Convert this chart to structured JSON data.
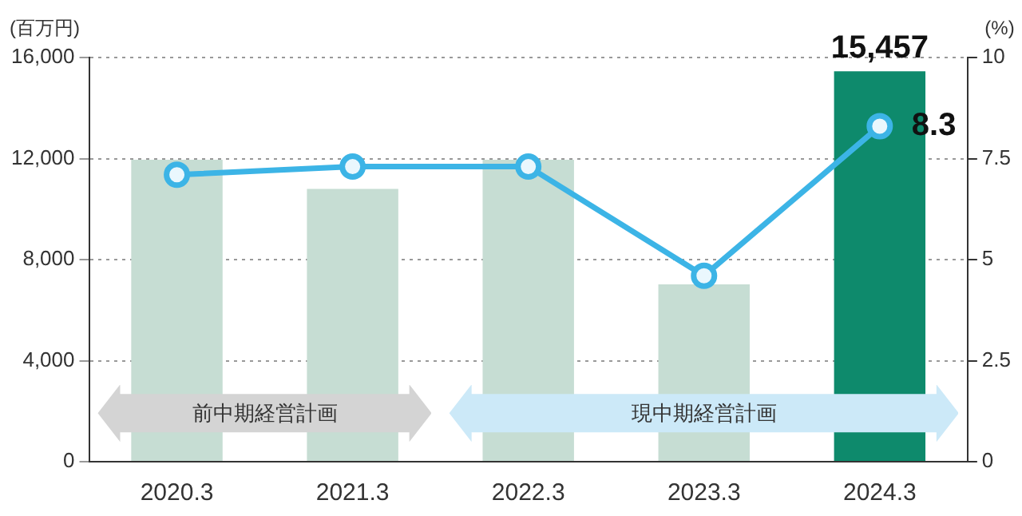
{
  "chart_data": {
    "type": "bar",
    "categories": [
      "2020.3",
      "2021.3",
      "2022.3",
      "2023.3",
      "2024.3"
    ],
    "ylabel": "(百万円)",
    "y2label": "(%)",
    "series": [
      {
        "colors": [
          "#c6ddd3",
          "#c6ddd3",
          "#c6ddd3",
          "#c6ddd3",
          "#0e8a6c"
        ],
        "values": [
          11950,
          10800,
          11950,
          7020,
          15457
        ],
        "value_labels": [
          null,
          null,
          null,
          null,
          "15,457"
        ]
      },
      {
        "type": "line",
        "axis": "y2",
        "color": "#3cb4e6",
        "values": [
          7.1,
          7.3,
          7.3,
          4.6,
          8.3
        ],
        "value_labels": [
          null,
          null,
          null,
          null,
          "8.3"
        ]
      }
    ],
    "ylim": [
      0,
      16000
    ],
    "yticks": [
      {
        "value": 0,
        "label": "0"
      },
      {
        "value": 4000,
        "label": "4,000"
      },
      {
        "value": 8000,
        "label": "8,000"
      },
      {
        "value": 12000,
        "label": "12,000"
      },
      {
        "value": 16000,
        "label": "16,000"
      }
    ],
    "y2lim": [
      0,
      10
    ],
    "y2ticks": [
      0,
      2.5,
      5,
      7.5,
      10
    ],
    "annotations": [
      "前中期経営計画",
      "現中期経営計画"
    ],
    "grid": "y",
    "legend": false,
    "marker": "circle",
    "line_style": "solid"
  }
}
